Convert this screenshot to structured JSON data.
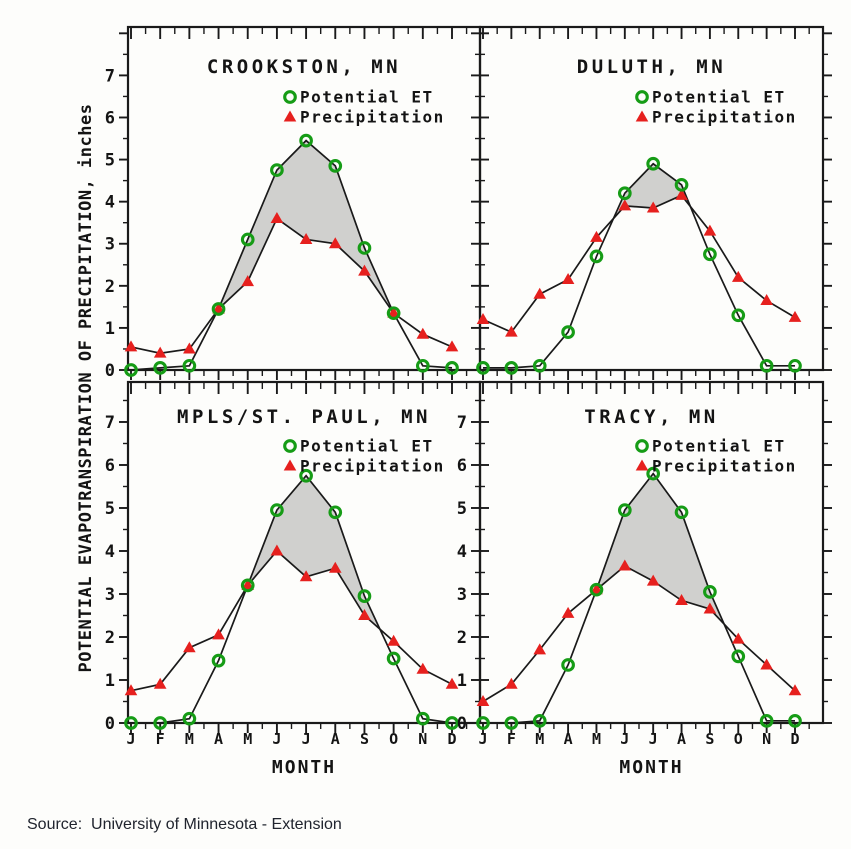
{
  "figure": {
    "y_axis_label": "POTENTIAL EVAPOTRANSPIRATION OF PRECIPITATION, inches",
    "x_axis_label": "MONTH",
    "source": "Source:  University of Minnesota - Extension"
  },
  "legend": {
    "pet_label": "Potential ET",
    "precip_label": "Precipitation"
  },
  "colors": {
    "pet": "#169c16",
    "precip": "#e6201e",
    "line": "#1a1a1a",
    "shade": "#c8c8c6",
    "text": "#141414",
    "background": "#fdfdfb"
  },
  "chart_data": [
    {
      "type": "line",
      "title": "CROOKSTON, MN",
      "position": "top-left",
      "categories": [
        "J",
        "F",
        "M",
        "A",
        "M",
        "J",
        "J",
        "A",
        "S",
        "O",
        "N",
        "D"
      ],
      "series": [
        {
          "name": "Potential ET",
          "marker": "open-circle",
          "color": "#169c16",
          "values": [
            0.0,
            0.05,
            0.1,
            1.45,
            3.1,
            4.75,
            5.45,
            4.85,
            2.9,
            1.35,
            0.1,
            0.05
          ]
        },
        {
          "name": "Precipitation",
          "marker": "filled-triangle",
          "color": "#e6201e",
          "values": [
            0.55,
            0.4,
            0.5,
            1.45,
            2.1,
            3.6,
            3.1,
            3.0,
            2.35,
            1.35,
            0.85,
            0.55
          ]
        }
      ],
      "shaded_between_series": true,
      "ylim": [
        0,
        8
      ],
      "yticks": [
        0,
        1,
        2,
        3,
        4,
        5,
        6,
        7
      ],
      "show_y_tick_labels": true,
      "show_x_tick_labels": false,
      "legend_position": "top-center"
    },
    {
      "type": "line",
      "title": "DULUTH, MN",
      "position": "top-right",
      "categories": [
        "J",
        "F",
        "M",
        "A",
        "M",
        "J",
        "J",
        "A",
        "S",
        "O",
        "N",
        "D"
      ],
      "series": [
        {
          "name": "Potential ET",
          "marker": "open-circle",
          "color": "#169c16",
          "values": [
            0.05,
            0.05,
            0.1,
            0.9,
            2.7,
            4.2,
            4.9,
            4.4,
            2.75,
            1.3,
            0.1,
            0.1
          ]
        },
        {
          "name": "Precipitation",
          "marker": "filled-triangle",
          "color": "#e6201e",
          "values": [
            1.2,
            0.9,
            1.8,
            2.15,
            3.15,
            3.9,
            3.85,
            4.15,
            3.3,
            2.2,
            1.65,
            1.25
          ]
        }
      ],
      "shaded_between_series": true,
      "ylim": [
        0,
        8
      ],
      "yticks": [
        0,
        1,
        2,
        3,
        4,
        5,
        6,
        7
      ],
      "show_y_tick_labels": false,
      "show_x_tick_labels": false,
      "legend_position": "top-center"
    },
    {
      "type": "line",
      "title": "MPLS/ST. PAUL, MN",
      "position": "bottom-left",
      "categories": [
        "J",
        "F",
        "M",
        "A",
        "M",
        "J",
        "J",
        "A",
        "S",
        "O",
        "N",
        "D"
      ],
      "series": [
        {
          "name": "Potential ET",
          "marker": "open-circle",
          "color": "#169c16",
          "values": [
            0.0,
            0.0,
            0.1,
            1.45,
            3.2,
            4.95,
            5.75,
            4.9,
            2.95,
            1.5,
            0.1,
            0.0
          ]
        },
        {
          "name": "Precipitation",
          "marker": "filled-triangle",
          "color": "#e6201e",
          "values": [
            0.75,
            0.9,
            1.75,
            2.05,
            3.2,
            4.0,
            3.4,
            3.6,
            2.5,
            1.9,
            1.25,
            0.9
          ]
        }
      ],
      "shaded_between_series": true,
      "xlabel": "MONTH",
      "ylim": [
        0,
        8
      ],
      "yticks": [
        0,
        1,
        2,
        3,
        4,
        5,
        6,
        7
      ],
      "show_y_tick_labels": true,
      "show_x_tick_labels": true,
      "legend_position": "top-center"
    },
    {
      "type": "line",
      "title": "TRACY, MN",
      "position": "bottom-right",
      "categories": [
        "J",
        "F",
        "M",
        "A",
        "M",
        "J",
        "J",
        "A",
        "S",
        "O",
        "N",
        "D"
      ],
      "series": [
        {
          "name": "Potential ET",
          "marker": "open-circle",
          "color": "#169c16",
          "values": [
            0.0,
            0.0,
            0.05,
            1.35,
            3.1,
            4.95,
            5.8,
            4.9,
            3.05,
            1.55,
            0.05,
            0.05
          ]
        },
        {
          "name": "Precipitation",
          "marker": "filled-triangle",
          "color": "#e6201e",
          "values": [
            0.5,
            0.9,
            1.7,
            2.55,
            3.1,
            3.65,
            3.3,
            2.85,
            2.65,
            1.95,
            1.35,
            0.75
          ]
        }
      ],
      "shaded_between_series": true,
      "xlabel": "MONTH",
      "ylim": [
        0,
        8
      ],
      "yticks": [
        0,
        1,
        2,
        3,
        4,
        5,
        6,
        7
      ],
      "show_y_tick_labels": true,
      "show_x_tick_labels": true,
      "legend_position": "top-center"
    }
  ]
}
